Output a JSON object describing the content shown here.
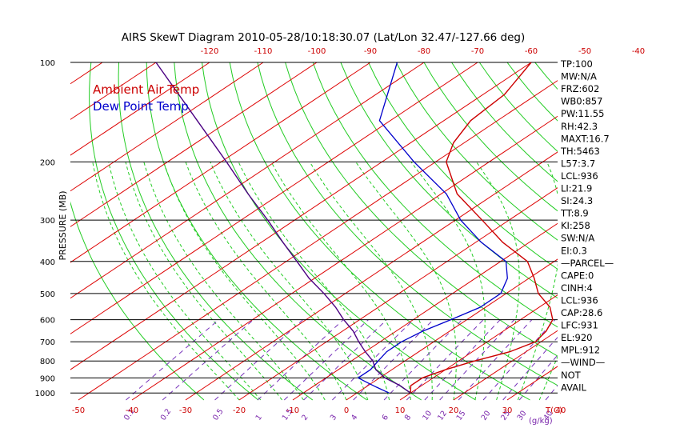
{
  "chart_data": {
    "type": "line",
    "title": "AIRS SkewT Diagram 2010-05-28/10:18:30.07 (Lat/Lon 32.47/-127.66 deg)",
    "ylabel": "PRESSURE (MB)",
    "xlabel_units": "T(C)",
    "mixing_ratio_units": "(g/kg)",
    "pressure_ticks": [
      {
        "p": 100,
        "label": "100"
      },
      {
        "p": 200,
        "label": "200"
      },
      {
        "p": 300,
        "label": "300"
      },
      {
        "p": 400,
        "label": "400"
      },
      {
        "p": 500,
        "label": "500"
      },
      {
        "p": 600,
        "label": "600"
      },
      {
        "p": 700,
        "label": "700"
      },
      {
        "p": 800,
        "label": "800"
      },
      {
        "p": 900,
        "label": "900"
      },
      {
        "p": 1000,
        "label": "1000"
      }
    ],
    "top_temp_ticks": [
      -120,
      -110,
      -100,
      -90,
      -80,
      -70,
      -60,
      -50,
      -40
    ],
    "bottom_temp_ticks": [
      -50,
      -40,
      -30,
      -20,
      -10,
      0,
      10,
      20,
      30,
      40
    ],
    "mixing_ratio_ticks": [
      "0.1",
      "0.2",
      "0.5",
      "1",
      "1.5",
      "2",
      "3",
      "4",
      "6",
      "8",
      "10",
      "12",
      "15",
      "20",
      "25",
      "30",
      "40"
    ],
    "legend": {
      "ambient_label": "Ambient Air Temp",
      "dewpoint_label": "Dew Point Temp",
      "ambient_color": "#cc0000",
      "dewpoint_color": "#0000cc",
      "parcel_color": "#4b0082",
      "placement": "top-left"
    },
    "series": [
      {
        "name": "Ambient Air Temp",
        "points": [
          [
            1000,
            10
          ],
          [
            950,
            8
          ],
          [
            900,
            8
          ],
          [
            850,
            10
          ],
          [
            800,
            13
          ],
          [
            750,
            17
          ],
          [
            700,
            19
          ],
          [
            650,
            18
          ],
          [
            600,
            16
          ],
          [
            550,
            12
          ],
          [
            500,
            6
          ],
          [
            450,
            1
          ],
          [
            400,
            -5
          ],
          [
            350,
            -15
          ],
          [
            300,
            -25
          ],
          [
            250,
            -37
          ],
          [
            200,
            -48
          ],
          [
            175,
            -52
          ],
          [
            150,
            -55
          ],
          [
            125,
            -56
          ],
          [
            100,
            -60
          ]
        ]
      },
      {
        "name": "Dew Point Temp",
        "points": [
          [
            1000,
            6
          ],
          [
            960,
            2
          ],
          [
            930,
            -1
          ],
          [
            900,
            -4
          ],
          [
            850,
            -4
          ],
          [
            800,
            -5
          ],
          [
            750,
            -6
          ],
          [
            700,
            -6
          ],
          [
            650,
            -5
          ],
          [
            600,
            -3
          ],
          [
            550,
            -1
          ],
          [
            500,
            -1
          ],
          [
            450,
            -4
          ],
          [
            400,
            -9
          ],
          [
            350,
            -19
          ],
          [
            300,
            -29
          ],
          [
            250,
            -39
          ],
          [
            200,
            -54
          ],
          [
            150,
            -72
          ],
          [
            100,
            -85
          ]
        ]
      },
      {
        "points": [
          [
            1000,
            10
          ],
          [
            950,
            6
          ],
          [
            900,
            1
          ],
          [
            850,
            -3
          ],
          [
            800,
            -6
          ],
          [
            750,
            -10
          ],
          [
            700,
            -14
          ],
          [
            650,
            -18
          ],
          [
            600,
            -23
          ],
          [
            550,
            -28
          ],
          [
            500,
            -34
          ],
          [
            450,
            -41
          ],
          [
            400,
            -48
          ],
          [
            350,
            -56
          ],
          [
            300,
            -65
          ],
          [
            250,
            -76
          ],
          [
            200,
            -89
          ],
          [
            150,
            -106
          ],
          [
            100,
            -130
          ]
        ]
      }
    ],
    "indices": [
      "TP:100",
      "MW:N/A",
      "FRZ:602",
      "WB0:857",
      "PW:11.55",
      "RH:42.3",
      "MAXT:16.7",
      "TH:5463",
      "L57:3.7",
      "LCL:936",
      "LI:21.9",
      "SI:24.3",
      "TT:8.9",
      "KI:258",
      "SW:N/A",
      "EI:0.3",
      "—PARCEL—",
      "CAPE:0",
      "CINH:4",
      "LCL:936",
      "CAP:28.6",
      "LFC:931",
      "EL:920",
      "MPL:912",
      "—WIND—",
      "NOT",
      "AVAIL"
    ]
  }
}
